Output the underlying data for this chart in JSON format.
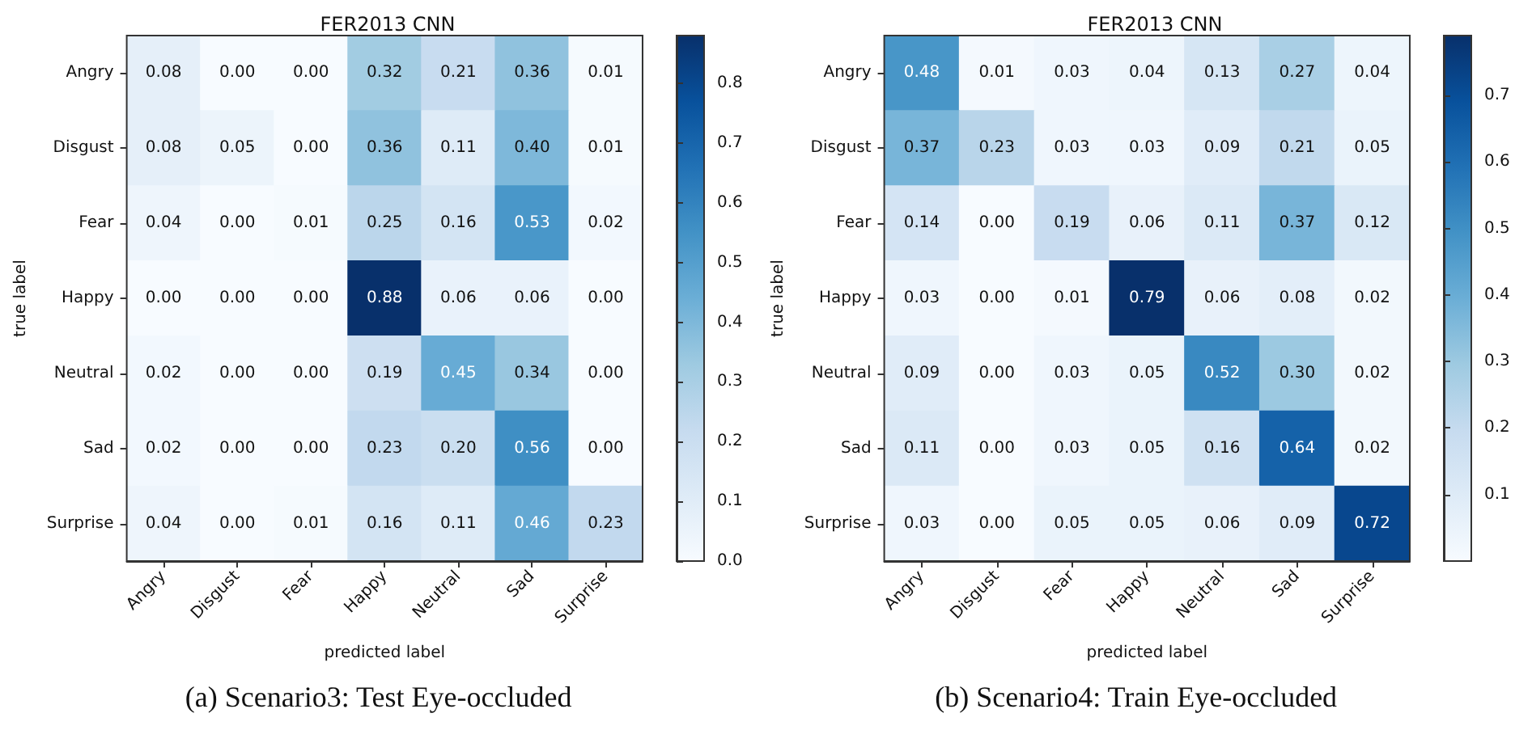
{
  "chart_data": [
    {
      "type": "heatmap",
      "title": "FER2013 CNN",
      "xlabel": "predicted label",
      "ylabel": "true label",
      "categories": [
        "Angry",
        "Disgust",
        "Fear",
        "Happy",
        "Neutral",
        "Sad",
        "Surprise"
      ],
      "y_categories": [
        "Angry",
        "Disgust",
        "Fear",
        "Happy",
        "Neutral",
        "Sad",
        "Surprise"
      ],
      "cells": [
        [
          0.08,
          0.0,
          0.0,
          0.32,
          0.21,
          0.36,
          0.01
        ],
        [
          0.08,
          0.05,
          0.0,
          0.36,
          0.11,
          0.4,
          0.01
        ],
        [
          0.04,
          0.0,
          0.01,
          0.25,
          0.16,
          0.53,
          0.02
        ],
        [
          0.0,
          0.0,
          0.0,
          0.88,
          0.06,
          0.06,
          0.0
        ],
        [
          0.02,
          0.0,
          0.0,
          0.19,
          0.45,
          0.34,
          0.0
        ],
        [
          0.02,
          0.0,
          0.0,
          0.23,
          0.2,
          0.56,
          0.0
        ],
        [
          0.04,
          0.0,
          0.01,
          0.16,
          0.11,
          0.46,
          0.23
        ]
      ],
      "clim": [
        0,
        0.88
      ],
      "cticks": [
        {
          "value": 0,
          "label": "0.0"
        },
        {
          "value": 0.1,
          "label": "0.1"
        },
        {
          "value": 0.2,
          "label": "0.2"
        },
        {
          "value": 0.3,
          "label": "0.3"
        },
        {
          "value": 0.4,
          "label": "0.4"
        },
        {
          "value": 0.5,
          "label": "0.5"
        },
        {
          "value": 0.6,
          "label": "0.6"
        },
        {
          "value": 0.7,
          "label": "0.7"
        },
        {
          "value": 0.8,
          "label": "0.8"
        }
      ],
      "cell_labels": [
        [
          "0.08",
          "0.00",
          "0.00",
          "0.32",
          "0.21",
          "0.36",
          "0.01"
        ],
        [
          "0.08",
          "0.05",
          "0.00",
          "0.36",
          "0.11",
          "0.40",
          "0.01"
        ],
        [
          "0.04",
          "0.00",
          "0.01",
          "0.25",
          "0.16",
          "0.53",
          "0.02"
        ],
        [
          "0.00",
          "0.00",
          "0.00",
          "0.88",
          "0.06",
          "0.06",
          "0.00"
        ],
        [
          "0.02",
          "0.00",
          "0.00",
          "0.19",
          "0.45",
          "0.34",
          "0.00"
        ],
        [
          "0.02",
          "0.00",
          "0.00",
          "0.23",
          "0.20",
          "0.56",
          "0.00"
        ],
        [
          "0.04",
          "0.00",
          "0.01",
          "0.16",
          "0.11",
          "0.46",
          "0.23"
        ]
      ],
      "annotations": [
        "(a) Scenario3: Test Eye-occluded"
      ]
    },
    {
      "type": "heatmap",
      "title": "FER2013 CNN",
      "xlabel": "predicted label",
      "ylabel": "true label",
      "categories": [
        "Angry",
        "Disgust",
        "Fear",
        "Happy",
        "Neutral",
        "Sad",
        "Surprise"
      ],
      "y_categories": [
        "Angry",
        "Disgust",
        "Fear",
        "Happy",
        "Neutral",
        "Sad",
        "Surprise"
      ],
      "cells": [
        [
          0.48,
          0.01,
          0.03,
          0.04,
          0.13,
          0.27,
          0.04
        ],
        [
          0.37,
          0.23,
          0.03,
          0.03,
          0.09,
          0.21,
          0.05
        ],
        [
          0.14,
          0.0,
          0.19,
          0.06,
          0.11,
          0.37,
          0.12
        ],
        [
          0.03,
          0.0,
          0.01,
          0.79,
          0.06,
          0.08,
          0.02
        ],
        [
          0.09,
          0.0,
          0.03,
          0.05,
          0.52,
          0.3,
          0.02
        ],
        [
          0.11,
          0.0,
          0.03,
          0.05,
          0.16,
          0.64,
          0.02
        ],
        [
          0.03,
          0.0,
          0.05,
          0.05,
          0.06,
          0.09,
          0.72
        ]
      ],
      "clim": [
        0,
        0.79
      ],
      "cticks": [
        {
          "value": 0.1,
          "label": "0.1"
        },
        {
          "value": 0.2,
          "label": "0.2"
        },
        {
          "value": 0.3,
          "label": "0.3"
        },
        {
          "value": 0.4,
          "label": "0.4"
        },
        {
          "value": 0.5,
          "label": "0.5"
        },
        {
          "value": 0.6,
          "label": "0.6"
        },
        {
          "value": 0.7,
          "label": "0.7"
        }
      ],
      "cell_labels": [
        [
          "0.48",
          "0.01",
          "0.03",
          "0.04",
          "0.13",
          "0.27",
          "0.04"
        ],
        [
          "0.37",
          "0.23",
          "0.03",
          "0.03",
          "0.09",
          "0.21",
          "0.05"
        ],
        [
          "0.14",
          "0.00",
          "0.19",
          "0.06",
          "0.11",
          "0.37",
          "0.12"
        ],
        [
          "0.03",
          "0.00",
          "0.01",
          "0.79",
          "0.06",
          "0.08",
          "0.02"
        ],
        [
          "0.09",
          "0.00",
          "0.03",
          "0.05",
          "0.52",
          "0.30",
          "0.02"
        ],
        [
          "0.11",
          "0.00",
          "0.03",
          "0.05",
          "0.16",
          "0.64",
          "0.02"
        ],
        [
          "0.03",
          "0.00",
          "0.05",
          "0.05",
          "0.06",
          "0.09",
          "0.72"
        ]
      ],
      "annotations": [
        "(b) Scenario4: Train Eye-occluded"
      ]
    }
  ]
}
